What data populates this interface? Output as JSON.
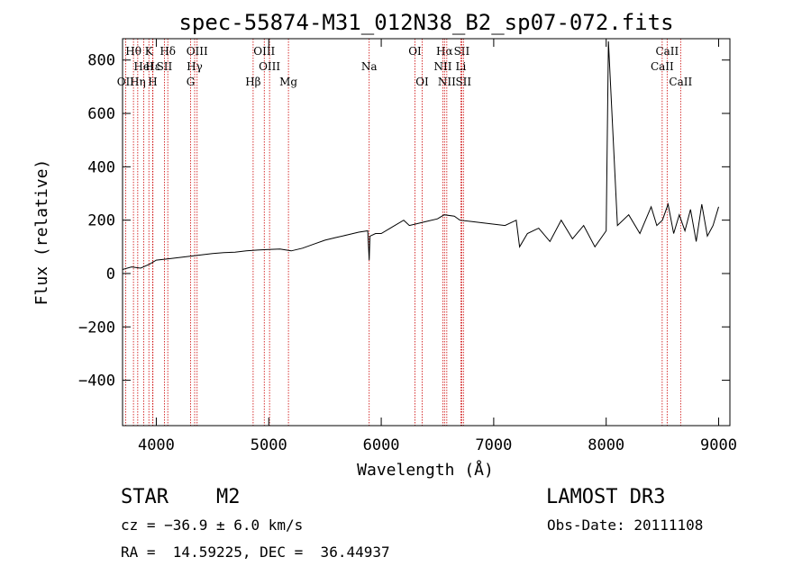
{
  "chart_data": {
    "type": "line",
    "title": "spec-55874-M31_012N38_B2_sp07-072.fits",
    "xlabel": "Wavelength (Å)",
    "ylabel": "Flux (relative)",
    "xlim": [
      3700,
      9100
    ],
    "ylim": [
      -570,
      880
    ],
    "xticks": [
      4000,
      5000,
      6000,
      7000,
      8000,
      9000
    ],
    "xtick_labels": [
      "4000",
      "5000",
      "6000",
      "7000",
      "8000",
      "9000"
    ],
    "yticks": [
      -400,
      -200,
      0,
      200,
      400,
      600,
      800
    ],
    "ytick_labels": [
      "−400",
      "−200",
      "0",
      "200",
      "400",
      "600",
      "800"
    ],
    "y_top_label_prefix": "800",
    "grid": false,
    "series": [
      {
        "name": "flux",
        "x": [
          3700,
          3780,
          3860,
          3940,
          4000,
          4100,
          4200,
          4300,
          4400,
          4500,
          4600,
          4700,
          4800,
          4900,
          5000,
          5100,
          5200,
          5300,
          5400,
          5500,
          5600,
          5700,
          5800,
          5880,
          5893,
          5900,
          5950,
          6000,
          6100,
          6200,
          6250,
          6300,
          6400,
          6500,
          6560,
          6650,
          6700,
          6800,
          6900,
          7000,
          7100,
          7200,
          7230,
          7300,
          7400,
          7500,
          7600,
          7700,
          7800,
          7900,
          8000,
          8020,
          8100,
          8200,
          8300,
          8400,
          8450,
          8500,
          8550,
          8600,
          8650,
          8700,
          8750,
          8800,
          8850,
          8900,
          8950,
          9000
        ],
        "y": [
          15,
          25,
          20,
          35,
          50,
          55,
          60,
          65,
          70,
          75,
          78,
          80,
          85,
          88,
          90,
          92,
          85,
          95,
          110,
          125,
          135,
          145,
          155,
          160,
          50,
          140,
          150,
          150,
          175,
          200,
          180,
          185,
          195,
          205,
          220,
          215,
          200,
          195,
          190,
          185,
          180,
          200,
          100,
          150,
          170,
          120,
          200,
          130,
          180,
          100,
          160,
          870,
          180,
          220,
          150,
          250,
          180,
          200,
          260,
          150,
          220,
          160,
          240,
          120,
          260,
          140,
          180,
          250
        ]
      }
    ],
    "line_markers": [
      {
        "label": "Hθ",
        "x": 3797,
        "row": 0
      },
      {
        "label": "K",
        "x": 3934,
        "row": 0
      },
      {
        "label": "Hδ",
        "x": 4102,
        "row": 0
      },
      {
        "label": "OIII",
        "x": 4363,
        "row": 0
      },
      {
        "label": "OIII",
        "x": 4960,
        "row": 0
      },
      {
        "label": "OI",
        "x": 6300,
        "row": 0
      },
      {
        "label": "Hα",
        "x": 6563,
        "row": 0
      },
      {
        "label": "SII",
        "x": 6716,
        "row": 0
      },
      {
        "label": "CaII",
        "x": 8542,
        "row": 0
      },
      {
        "label": "Hε",
        "x": 3970,
        "row": 1
      },
      {
        "label": "HeI",
        "x": 3889,
        "row": 1
      },
      {
        "label": "SII",
        "x": 4072,
        "row": 1
      },
      {
        "label": "Hγ",
        "x": 4341,
        "row": 1
      },
      {
        "label": "OIII",
        "x": 5007,
        "row": 1
      },
      {
        "label": "Na",
        "x": 5893,
        "row": 1
      },
      {
        "label": "NII",
        "x": 6548,
        "row": 1
      },
      {
        "label": "Li",
        "x": 6708,
        "row": 1
      },
      {
        "label": "CaII",
        "x": 8498,
        "row": 1
      },
      {
        "label": "OII",
        "x": 3727,
        "row": 2
      },
      {
        "label": "Hη",
        "x": 3835,
        "row": 2
      },
      {
        "label": "H",
        "x": 3968,
        "row": 2
      },
      {
        "label": "G",
        "x": 4305,
        "row": 2
      },
      {
        "label": "Hβ",
        "x": 4861,
        "row": 2
      },
      {
        "label": "Mg",
        "x": 5175,
        "row": 2
      },
      {
        "label": "OI",
        "x": 6364,
        "row": 2
      },
      {
        "label": "NII",
        "x": 6583,
        "row": 2
      },
      {
        "label": "SII",
        "x": 6731,
        "row": 2
      },
      {
        "label": "CaII",
        "x": 8662,
        "row": 2
      }
    ],
    "marker_color": "#cc0000"
  },
  "info": {
    "object_class": "STAR",
    "subclass": "M2",
    "survey": "LAMOST DR3",
    "cz": "cz = −36.9 ± 6.0 km/s",
    "obs_date": "Obs-Date: 20111108",
    "coords": "RA =  14.59225, DEC =  36.44937"
  }
}
